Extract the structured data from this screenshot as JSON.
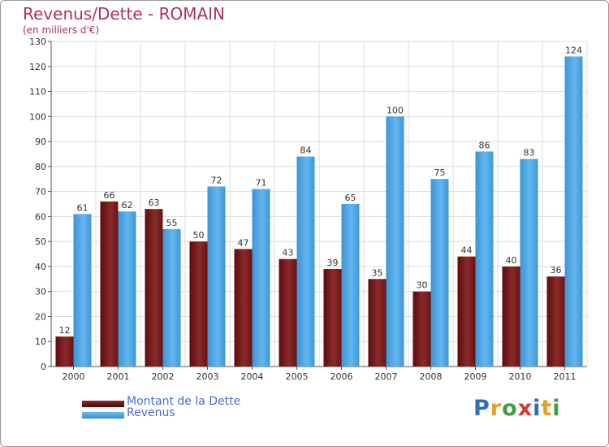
{
  "header": {
    "title": "Revenus/Dette - ROMAIN",
    "subtitle": "(en milliers d'€)"
  },
  "logo": {
    "text": "Proxiti",
    "letters": [
      "P",
      "r",
      "o",
      "x",
      "i",
      "t",
      "i"
    ],
    "letter_colors": [
      "#2f6fb6",
      "#e8a020",
      "#3f9f3f",
      "#d23a2a",
      "#2f6fb6",
      "#e8a020",
      "#3f9f3f"
    ]
  },
  "chart_data": {
    "type": "bar",
    "categories": [
      "2000",
      "2001",
      "2002",
      "2003",
      "2004",
      "2005",
      "2006",
      "2007",
      "2008",
      "2009",
      "2010",
      "2011"
    ],
    "series": [
      {
        "name": "Montant de la Dette",
        "color": "#7a1a1a",
        "values": [
          12,
          66,
          63,
          50,
          47,
          43,
          39,
          35,
          30,
          44,
          40,
          36
        ]
      },
      {
        "name": "Revenus",
        "color": "#4aa3e3",
        "values": [
          61,
          62,
          55,
          72,
          71,
          84,
          65,
          100,
          75,
          86,
          83,
          124
        ]
      }
    ],
    "y_ticks": [
      "0",
      "10",
      "20",
      "30",
      "40",
      "50",
      "60",
      "70",
      "80",
      "90",
      "100",
      "110",
      "120",
      "130"
    ],
    "ylim": [
      0,
      130
    ],
    "grid": true,
    "legend_position": "bottom-left"
  }
}
